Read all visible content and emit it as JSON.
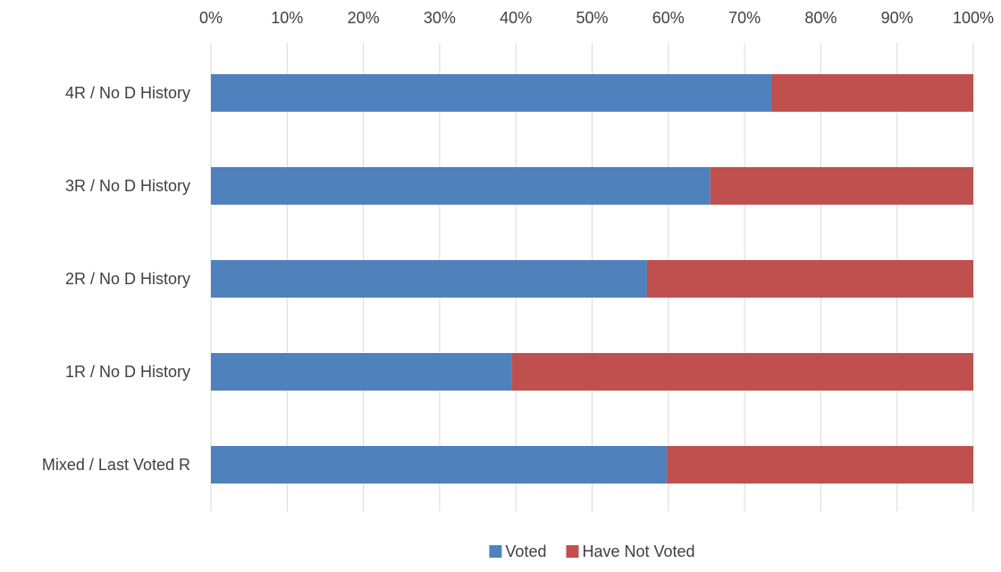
{
  "chart_data": {
    "type": "bar",
    "orientation": "horizontal",
    "stacked": "percent",
    "categories": [
      "4R / No D History",
      "3R / No D History",
      "2R / No D History",
      "1R / No D History",
      "Mixed / Last Voted R"
    ],
    "series": [
      {
        "name": "Voted",
        "color": "#4F81BD",
        "values": [
          73.5,
          65.5,
          57.2,
          39.5,
          59.8
        ]
      },
      {
        "name": "Have Not Voted",
        "color": "#C0504D",
        "values": [
          26.5,
          34.5,
          42.8,
          60.5,
          40.2
        ]
      }
    ],
    "xlim": [
      0,
      100
    ],
    "x_ticks": [
      "0%",
      "10%",
      "20%",
      "30%",
      "40%",
      "50%",
      "60%",
      "70%",
      "80%",
      "90%",
      "100%"
    ],
    "x_axis_position": "top",
    "gridlines": true,
    "gridline_color": "#D9D9D9",
    "legend_position": "bottom",
    "title": "",
    "xlabel": "",
    "ylabel": ""
  }
}
